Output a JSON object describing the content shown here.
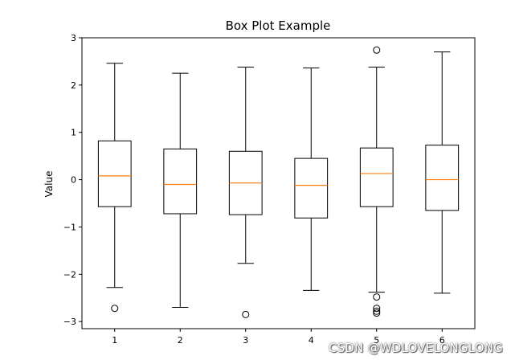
{
  "chart_data": {
    "type": "box",
    "title": "Box Plot Example",
    "xlabel": "",
    "ylabel": "Value",
    "ylim": [
      -3.15,
      3
    ],
    "yticks": [
      -3,
      -2,
      -1,
      0,
      1,
      2,
      3
    ],
    "ytick_labels": [
      "−3",
      "−2",
      "−1",
      "0",
      "1",
      "2",
      "3"
    ],
    "categories": [
      "1",
      "2",
      "3",
      "4",
      "5",
      "6"
    ],
    "boxes": [
      {
        "category": "1",
        "whisker_low": -2.28,
        "q1": -0.57,
        "median": 0.08,
        "q3": 0.82,
        "whisker_high": 2.46,
        "outliers": [
          -2.72
        ]
      },
      {
        "category": "2",
        "whisker_low": -2.7,
        "q1": -0.72,
        "median": -0.1,
        "q3": 0.65,
        "whisker_high": 2.25,
        "outliers": []
      },
      {
        "category": "3",
        "whisker_low": -1.77,
        "q1": -0.74,
        "median": -0.07,
        "q3": 0.6,
        "whisker_high": 2.38,
        "outliers": [
          -2.85
        ]
      },
      {
        "category": "4",
        "whisker_low": -2.34,
        "q1": -0.81,
        "median": -0.12,
        "q3": 0.45,
        "whisker_high": 2.36,
        "outliers": []
      },
      {
        "category": "5",
        "whisker_low": -2.38,
        "q1": -0.57,
        "median": 0.13,
        "q3": 0.67,
        "whisker_high": 2.38,
        "outliers": [
          2.74,
          -2.48,
          -2.72,
          -2.78,
          -2.82
        ]
      },
      {
        "category": "6",
        "whisker_low": -2.4,
        "q1": -0.65,
        "median": 0.0,
        "q3": 0.73,
        "whisker_high": 2.7,
        "outliers": []
      }
    ],
    "colors": {
      "box": "#000000",
      "median": "#ff7f0e",
      "outlier": "#000000"
    },
    "grid": false
  },
  "watermark": "CSDN @WDLOVELONGLONG"
}
